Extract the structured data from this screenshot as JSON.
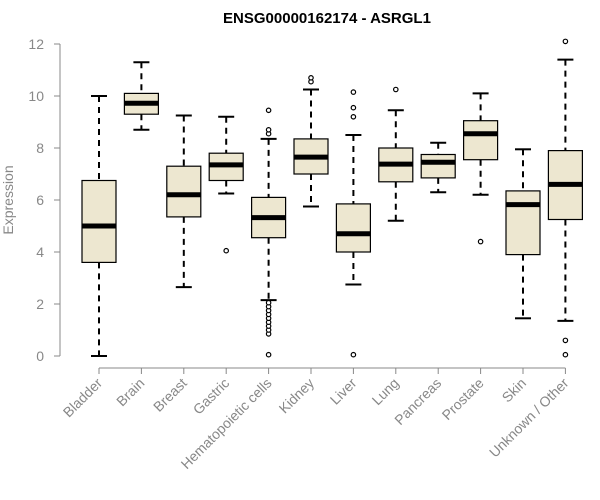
{
  "chart_data": {
    "type": "boxplot",
    "title": "ENSG00000162174 - ASRGL1",
    "xlabel": "",
    "ylabel": "Expression",
    "ylim": [
      0,
      12
    ],
    "yticks": [
      0,
      2,
      4,
      6,
      8,
      10,
      12
    ],
    "box_color": "#ede7d0",
    "categories": [
      "Bladder",
      "Brain",
      "Breast",
      "Gastric",
      "Hematopoietic cells",
      "Kidney",
      "Liver",
      "Lung",
      "Pancreas",
      "Prostate",
      "Skin",
      "Unknown / Other"
    ],
    "boxes": [
      {
        "name": "Bladder",
        "whisker_low": 0.0,
        "q1": 3.6,
        "median": 5.0,
        "q3": 6.75,
        "whisker_high": 10.0,
        "outliers": []
      },
      {
        "name": "Brain",
        "whisker_low": 8.7,
        "q1": 9.3,
        "median": 9.72,
        "q3": 10.1,
        "whisker_high": 11.3,
        "outliers": []
      },
      {
        "name": "Breast",
        "whisker_low": 2.65,
        "q1": 5.35,
        "median": 6.2,
        "q3": 7.3,
        "whisker_high": 9.25,
        "outliers": []
      },
      {
        "name": "Gastric",
        "whisker_low": 6.25,
        "q1": 6.75,
        "median": 7.35,
        "q3": 7.8,
        "whisker_high": 9.2,
        "outliers": [
          4.05
        ]
      },
      {
        "name": "Hematopoietic cells",
        "whisker_low": 2.15,
        "q1": 4.55,
        "median": 5.32,
        "q3": 6.1,
        "whisker_high": 8.35,
        "outliers": [
          0.05,
          0.85,
          1.0,
          1.15,
          1.3,
          1.45,
          1.6,
          1.75,
          1.9,
          2.05,
          8.55,
          8.7,
          9.45
        ]
      },
      {
        "name": "Kidney",
        "whisker_low": 5.75,
        "q1": 7.0,
        "median": 7.65,
        "q3": 8.35,
        "whisker_high": 10.25,
        "outliers": [
          10.55,
          10.7
        ]
      },
      {
        "name": "Liver",
        "whisker_low": 2.75,
        "q1": 4.0,
        "median": 4.7,
        "q3": 5.85,
        "whisker_high": 8.5,
        "outliers": [
          0.05,
          9.2,
          9.55,
          10.15
        ]
      },
      {
        "name": "Lung",
        "whisker_low": 5.2,
        "q1": 6.7,
        "median": 7.38,
        "q3": 8.0,
        "whisker_high": 9.45,
        "outliers": [
          10.25
        ]
      },
      {
        "name": "Pancreas",
        "whisker_low": 6.3,
        "q1": 6.85,
        "median": 7.45,
        "q3": 7.75,
        "whisker_high": 8.2,
        "outliers": []
      },
      {
        "name": "Prostate",
        "whisker_low": 6.2,
        "q1": 7.55,
        "median": 8.55,
        "q3": 9.05,
        "whisker_high": 10.1,
        "outliers": [
          4.4
        ]
      },
      {
        "name": "Skin",
        "whisker_low": 1.45,
        "q1": 3.9,
        "median": 5.82,
        "q3": 6.35,
        "whisker_high": 7.95,
        "outliers": []
      },
      {
        "name": "Unknown / Other",
        "whisker_low": 1.35,
        "q1": 5.25,
        "median": 6.6,
        "q3": 7.9,
        "whisker_high": 11.4,
        "outliers": [
          0.05,
          0.6,
          12.1
        ]
      }
    ]
  }
}
